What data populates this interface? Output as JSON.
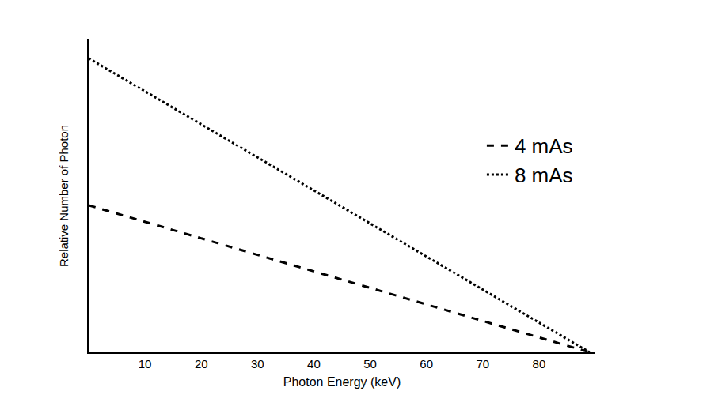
{
  "chart_data": {
    "type": "line",
    "x_label": "Photon Energy (keV)",
    "y_label": "Relative Number of Photon",
    "series": [
      {
        "name": "4 mAs",
        "color": "#000000",
        "line_style": "dash",
        "x": [
          0,
          89
        ],
        "values": [
          47,
          0
        ]
      },
      {
        "name": "8 mAs",
        "color": "#000000",
        "line_style": "dot",
        "x": [
          0,
          89
        ],
        "values": [
          94,
          0
        ]
      }
    ],
    "xlim": [
      0,
      90
    ],
    "xticks": [
      10,
      20,
      30,
      40,
      50,
      60,
      70,
      80
    ],
    "ylim": [
      0,
      100
    ],
    "yticks": [],
    "grid": false,
    "legend": "right",
    "tick_labels": "x"
  }
}
